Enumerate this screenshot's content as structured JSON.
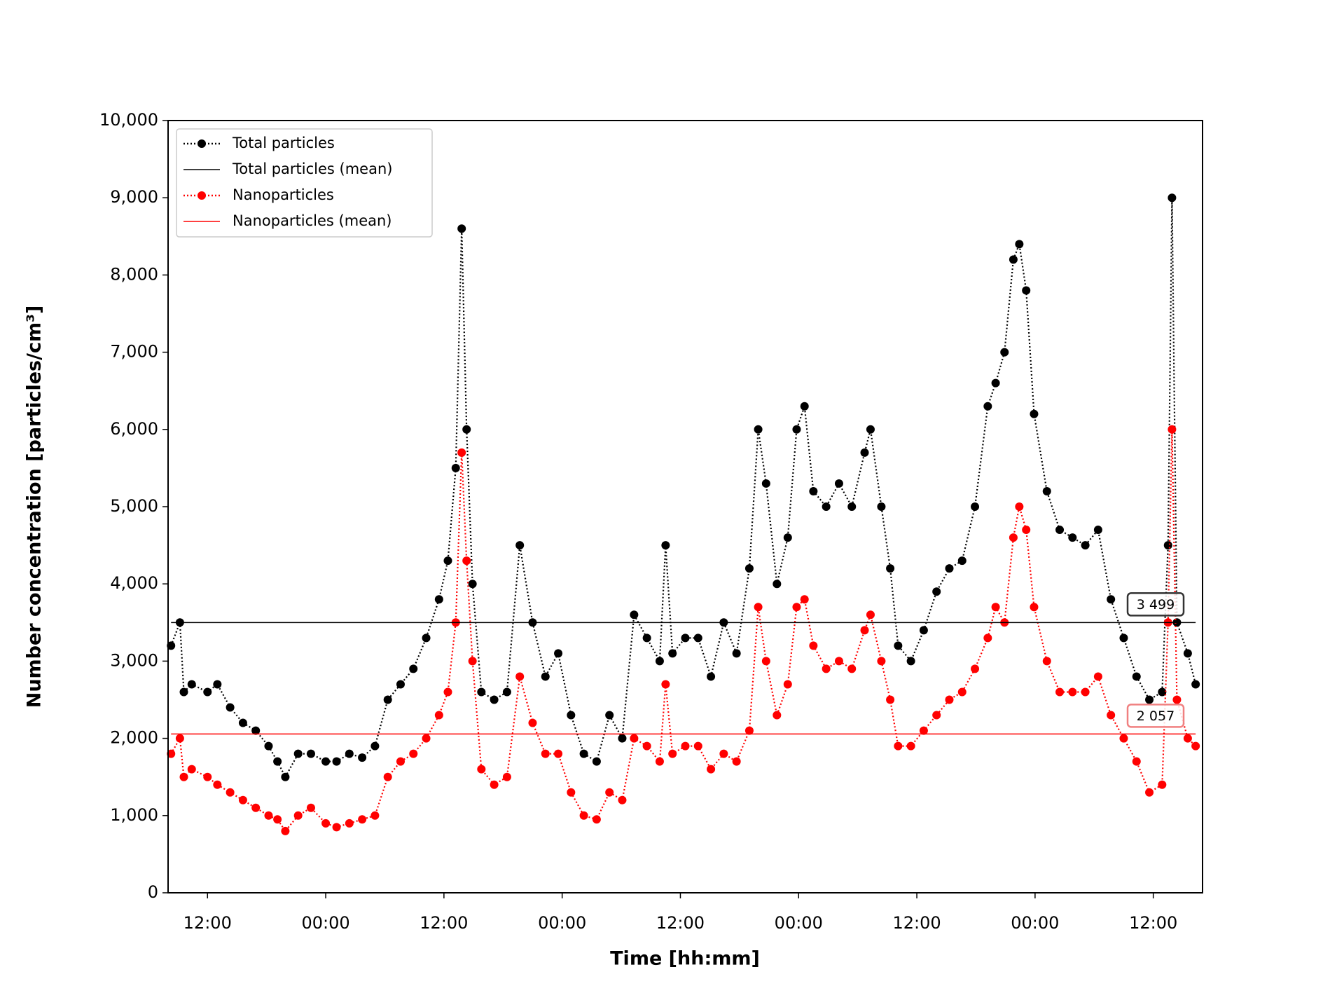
{
  "chart_data": {
    "type": "line",
    "xlabel": "Time [hh:mm]",
    "ylabel": "Number concentration [particles/cm³]",
    "xlim": [
      8,
      113
    ],
    "xticks": [
      {
        "value": 12,
        "label": "12:00"
      },
      {
        "value": 24,
        "label": "00:00"
      },
      {
        "value": 36,
        "label": "12:00"
      },
      {
        "value": 48,
        "label": "00:00"
      },
      {
        "value": 60,
        "label": "12:00"
      },
      {
        "value": 72,
        "label": "00:00"
      },
      {
        "value": 84,
        "label": "12:00"
      },
      {
        "value": 96,
        "label": "00:00"
      },
      {
        "value": 108,
        "label": "12:00"
      }
    ],
    "ylim": [
      0,
      10000
    ],
    "yticks": [
      0,
      {
        "value": 1000,
        "label": "1,000"
      },
      {
        "value": 2000,
        "label": "2,000"
      },
      {
        "value": 3000,
        "label": "3,000"
      },
      {
        "value": 4000,
        "label": "4,000"
      },
      {
        "value": 5000,
        "label": "5,000"
      },
      {
        "value": 6000,
        "label": "6,000"
      },
      {
        "value": 7000,
        "label": "7,000"
      },
      {
        "value": 8000,
        "label": "8,000"
      },
      {
        "value": 9000,
        "label": "9,000"
      },
      {
        "value": 10000,
        "label": "10,000"
      }
    ],
    "legend": "upper left",
    "x": [
      8.3,
      9.2,
      9.6,
      10.4,
      12,
      13,
      14.3,
      15.6,
      16.9,
      18.2,
      19.1,
      19.9,
      21.2,
      22.5,
      24,
      25.1,
      26.4,
      27.7,
      29,
      30.3,
      31.6,
      32.9,
      34.2,
      35.5,
      36.4,
      37.2,
      37.8,
      38.3,
      38.9,
      39.8,
      41.1,
      42.4,
      43.7,
      45,
      46.3,
      47.6,
      48.9,
      50.2,
      51.5,
      52.8,
      54.1,
      55.3,
      56.6,
      57.9,
      58.5,
      59.2,
      60.5,
      61.8,
      63.1,
      64.4,
      65.7,
      67,
      67.9,
      68.7,
      69.8,
      70.9,
      71.8,
      72.6,
      73.5,
      74.8,
      76.1,
      77.4,
      78.7,
      79.3,
      80.4,
      81.3,
      82.1,
      83.4,
      84.7,
      86,
      87.3,
      88.6,
      89.9,
      91.2,
      92,
      92.9,
      93.8,
      94.4,
      95.1,
      95.9,
      97.2,
      98.5,
      99.8,
      101.1,
      102.4,
      103.7,
      105,
      106.3,
      107.6,
      108.9,
      109.5,
      109.9,
      110.4,
      111.5,
      112.3
    ],
    "series": [
      {
        "name": "Total particles",
        "color": "#000000",
        "values": [
          3200,
          3500,
          2600,
          2700,
          2600,
          2700,
          2400,
          2200,
          2100,
          1900,
          1700,
          1500,
          1800,
          1800,
          1700,
          1700,
          1800,
          1750,
          1900,
          2500,
          2700,
          2900,
          3300,
          3800,
          4300,
          5500,
          8600,
          6000,
          4000,
          2600,
          2500,
          2600,
          4500,
          3500,
          2800,
          3100,
          2300,
          1800,
          1700,
          2300,
          2000,
          3600,
          3300,
          3000,
          4500,
          3100,
          3300,
          3300,
          2800,
          3500,
          3100,
          4200,
          6000,
          5300,
          4000,
          4600,
          6000,
          6300,
          5200,
          5000,
          5300,
          5000,
          5700,
          6000,
          5000,
          4200,
          3200,
          3000,
          3400,
          3900,
          4200,
          4300,
          5000,
          6300,
          6600,
          7000,
          8200,
          8400,
          7800,
          6200,
          5200,
          4700,
          4600,
          4500,
          4700,
          3800,
          3300,
          2800,
          2500,
          2600,
          4500,
          9000,
          3500,
          3100,
          2700
        ],
        "mean_name": "Total particles (mean)",
        "mean": 3499,
        "mean_label": "3 499"
      },
      {
        "name": "Nanoparticles",
        "color": "#ff0000",
        "values": [
          1800,
          2000,
          1500,
          1600,
          1500,
          1400,
          1300,
          1200,
          1100,
          1000,
          950,
          800,
          1000,
          1100,
          900,
          850,
          900,
          950,
          1000,
          1500,
          1700,
          1800,
          2000,
          2300,
          2600,
          3500,
          5700,
          4300,
          3000,
          1600,
          1400,
          1500,
          2800,
          2200,
          1800,
          1800,
          1300,
          1000,
          950,
          1300,
          1200,
          2000,
          1900,
          1700,
          2700,
          1800,
          1900,
          1900,
          1600,
          1800,
          1700,
          2100,
          3700,
          3000,
          2300,
          2700,
          3700,
          3800,
          3200,
          2900,
          3000,
          2900,
          3400,
          3600,
          3000,
          2500,
          1900,
          1900,
          2100,
          2300,
          2500,
          2600,
          2900,
          3300,
          3700,
          3500,
          4600,
          5000,
          4700,
          3700,
          3000,
          2600,
          2600,
          2600,
          2800,
          2300,
          2000,
          1700,
          1300,
          1400,
          3500,
          6000,
          2500,
          2000,
          1900
        ],
        "mean_name": "Nanoparticles (mean)",
        "mean": 2057,
        "mean_label": "2 057"
      }
    ]
  }
}
